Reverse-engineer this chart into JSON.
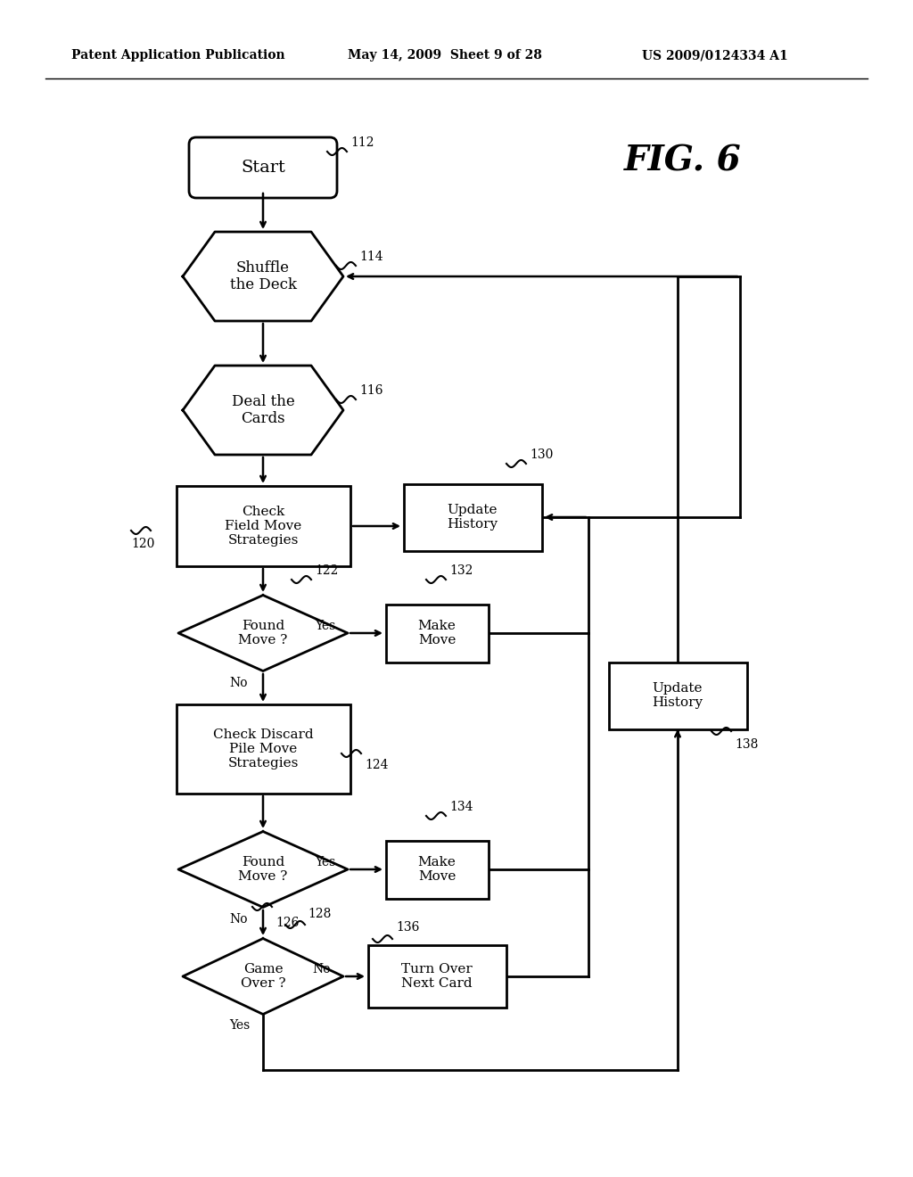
{
  "title": "FIG. 6",
  "header_left": "Patent Application Publication",
  "header_mid": "May 14, 2009  Sheet 9 of 28",
  "header_right": "US 2009/0124334 A1",
  "bg_color": "#ffffff"
}
